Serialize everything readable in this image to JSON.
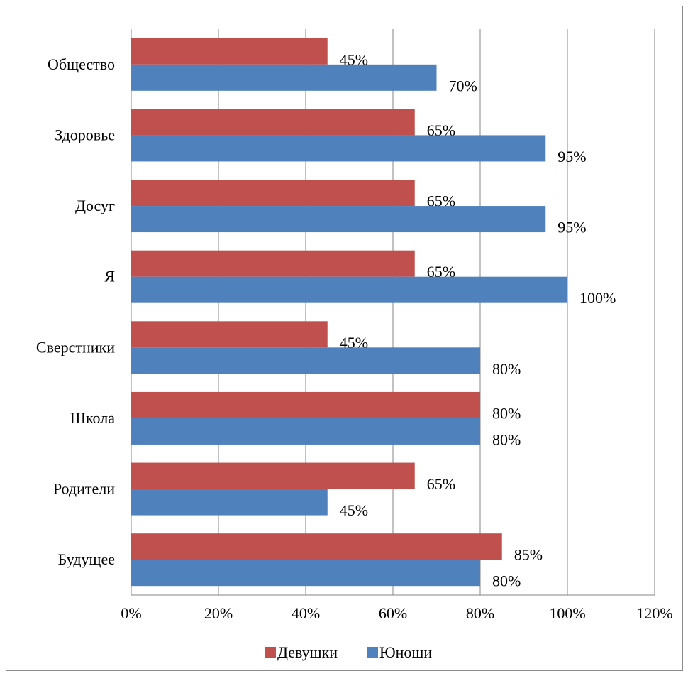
{
  "chart_data": {
    "type": "bar",
    "orientation": "horizontal",
    "categories": [
      "Общество",
      "Здоровье",
      "Досуг",
      "Я",
      "Сверстники",
      "Школа",
      "Родители",
      "Будущее"
    ],
    "series": [
      {
        "name": "Девушки",
        "color": "#c0504d",
        "values": [
          45,
          65,
          65,
          65,
          45,
          80,
          65,
          85
        ],
        "labels": [
          "45%",
          "65%",
          "65%",
          "65%",
          "45%",
          "80%",
          "65%",
          "85%"
        ]
      },
      {
        "name": "Юноши",
        "color": "#4f81bd",
        "values": [
          70,
          95,
          95,
          100,
          80,
          80,
          45,
          80
        ],
        "labels": [
          "70%",
          "95%",
          "95%",
          "100%",
          "80%",
          "80%",
          "45%",
          "80%"
        ]
      }
    ],
    "xlim": [
      0,
      120
    ],
    "xticks": [
      0,
      20,
      40,
      60,
      80,
      100,
      120
    ],
    "xtick_labels": [
      "0%",
      "20%",
      "40%",
      "60%",
      "80%",
      "100%",
      "120%"
    ],
    "grid": "vertical",
    "legend_position": "bottom",
    "title": "",
    "xlabel": "",
    "ylabel": ""
  }
}
